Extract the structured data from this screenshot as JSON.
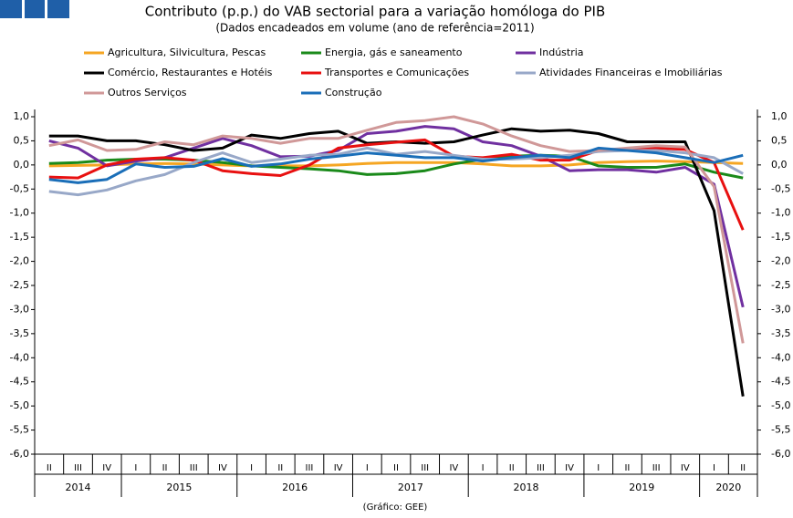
{
  "chart_data": {
    "type": "line",
    "title": "Contributo (p.p.) do VAB sectorial para a variação homóloga do PIB",
    "subtitle": "(Dados encadeados em volume (ano de referência=2011)",
    "source": "(Gráfico: GEE)",
    "categories": [
      "II",
      "III",
      "IV",
      "I",
      "II",
      "III",
      "IV",
      "I",
      "II",
      "III",
      "IV",
      "I",
      "II",
      "III",
      "IV",
      "I",
      "II",
      "III",
      "IV",
      "I",
      "II",
      "III",
      "IV",
      "I",
      "II"
    ],
    "x_groups": [
      "2014",
      "2014",
      "2014",
      "2015",
      "2015",
      "2015",
      "2015",
      "2016",
      "2016",
      "2016",
      "2016",
      "2017",
      "2017",
      "2017",
      "2017",
      "2018",
      "2018",
      "2018",
      "2018",
      "2019",
      "2019",
      "2019",
      "2019",
      "2020",
      "2020"
    ],
    "ylim": [
      -6,
      1
    ],
    "yticks": [
      {
        "value": 1,
        "label": "1,0"
      },
      {
        "value": 0.5,
        "label": "0,5"
      },
      {
        "value": 0,
        "label": "0,0"
      },
      {
        "value": -0.5,
        "label": "-0,5"
      },
      {
        "value": -1,
        "label": "-1,0"
      },
      {
        "value": -1.5,
        "label": "-1,5"
      },
      {
        "value": -2,
        "label": "-2,0"
      },
      {
        "value": -2.5,
        "label": "-2,5"
      },
      {
        "value": -3,
        "label": "-3,0"
      },
      {
        "value": -3.5,
        "label": "-3,5"
      },
      {
        "value": -4,
        "label": "-4,0"
      },
      {
        "value": -4.5,
        "label": "-4,5"
      },
      {
        "value": -5,
        "label": "-5,0"
      },
      {
        "value": -5.5,
        "label": "-5,5"
      },
      {
        "value": -6,
        "label": "-6,0"
      }
    ],
    "grid": false,
    "series": [
      {
        "name": "Agricultura, Silvicultura, Pescas",
        "color": "#f5a623",
        "values": [
          -0.02,
          -0.01,
          0.0,
          0.02,
          0.03,
          0.02,
          0.0,
          -0.02,
          -0.02,
          -0.02,
          0.0,
          0.03,
          0.05,
          0.05,
          0.05,
          0.02,
          -0.02,
          -0.02,
          0.0,
          0.05,
          0.07,
          0.08,
          0.07,
          0.05,
          0.03
        ]
      },
      {
        "name": "Energia, gás e saneamento",
        "color": "#1a8a1a",
        "values": [
          0.03,
          0.05,
          0.1,
          0.12,
          0.12,
          0.1,
          0.05,
          -0.02,
          -0.05,
          -0.08,
          -0.12,
          -0.2,
          -0.18,
          -0.12,
          0.02,
          0.12,
          0.18,
          0.2,
          0.18,
          -0.02,
          -0.05,
          -0.05,
          0.02,
          -0.15,
          -0.27
        ]
      },
      {
        "name": "Indústria",
        "color": "#7030a0",
        "values": [
          0.5,
          0.35,
          -0.02,
          0.08,
          0.15,
          0.35,
          0.55,
          0.4,
          0.17,
          0.18,
          0.3,
          0.65,
          0.7,
          0.8,
          0.75,
          0.48,
          0.4,
          0.18,
          -0.12,
          -0.1,
          -0.1,
          -0.15,
          -0.05,
          -0.4,
          -2.95
        ]
      },
      {
        "name": "Comércio, Restaurantes e Hotéis",
        "color": "#000000",
        "values": [
          0.6,
          0.6,
          0.5,
          0.5,
          0.42,
          0.3,
          0.35,
          0.62,
          0.55,
          0.65,
          0.7,
          0.45,
          0.48,
          0.45,
          0.48,
          0.62,
          0.75,
          0.7,
          0.72,
          0.65,
          0.48,
          0.48,
          0.48,
          -0.95,
          -4.8
        ]
      },
      {
        "name": "Transportes e Comunicações",
        "color": "#e81010",
        "values": [
          -0.25,
          -0.27,
          0.0,
          0.12,
          0.15,
          0.1,
          -0.12,
          -0.18,
          -0.22,
          0.0,
          0.35,
          0.42,
          0.47,
          0.52,
          0.18,
          0.15,
          0.22,
          0.1,
          0.1,
          0.3,
          0.32,
          0.35,
          0.32,
          0.05,
          -1.35
        ]
      },
      {
        "name": "Atividades Financeiras e Imobiliárias",
        "color": "#98a8c8",
        "values": [
          -0.55,
          -0.62,
          -0.52,
          -0.33,
          -0.2,
          0.05,
          0.25,
          0.05,
          0.12,
          0.2,
          0.22,
          0.35,
          0.22,
          0.28,
          0.2,
          0.12,
          0.12,
          0.15,
          0.2,
          0.28,
          0.3,
          0.3,
          0.25,
          0.15,
          -0.18
        ]
      },
      {
        "name": "Outros Serviços",
        "color": "#d09898",
        "values": [
          0.4,
          0.52,
          0.3,
          0.32,
          0.48,
          0.42,
          0.6,
          0.55,
          0.45,
          0.55,
          0.55,
          0.72,
          0.88,
          0.92,
          1.0,
          0.85,
          0.6,
          0.4,
          0.28,
          0.3,
          0.35,
          0.4,
          0.37,
          -0.45,
          -3.7
        ]
      },
      {
        "name": "Construção",
        "color": "#1a6eb8",
        "values": [
          -0.3,
          -0.37,
          -0.3,
          0.02,
          -0.05,
          -0.03,
          0.13,
          -0.03,
          0.02,
          0.12,
          0.18,
          0.25,
          0.2,
          0.15,
          0.15,
          0.08,
          0.15,
          0.2,
          0.15,
          0.35,
          0.3,
          0.25,
          0.15,
          0.05,
          0.2
        ]
      }
    ]
  }
}
